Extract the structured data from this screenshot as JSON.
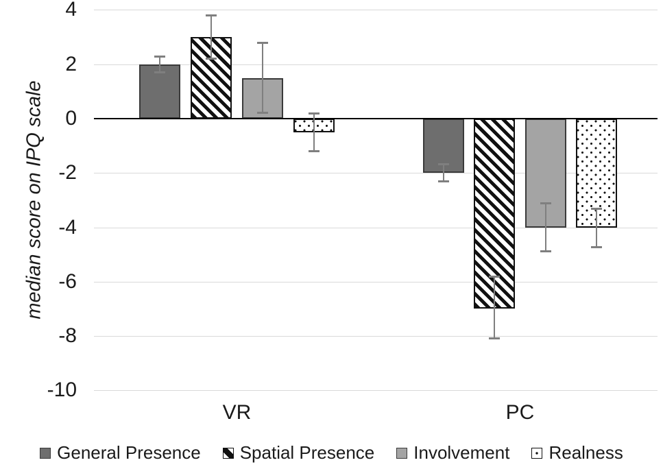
{
  "chart_data": {
    "type": "bar",
    "title": "",
    "xlabel": "",
    "ylabel": "median score on IPQ scale",
    "categories": [
      "VR",
      "PC"
    ],
    "series": [
      {
        "name": "General Presence",
        "style": "solid-dark-gray",
        "values": [
          2,
          -2
        ],
        "error_plus": [
          0.3,
          0.33
        ],
        "error_minus": [
          0.3,
          0.33
        ]
      },
      {
        "name": "Spatial Presence",
        "style": "diagonal-hatch",
        "values": [
          3,
          -7
        ],
        "error_plus": [
          0.8,
          1.2
        ],
        "error_minus": [
          0.8,
          1.1
        ]
      },
      {
        "name": "Involvement",
        "style": "solid-light-gray",
        "values": [
          1.5,
          -4
        ],
        "error_plus": [
          1.3,
          0.9
        ],
        "error_minus": [
          1.3,
          0.9
        ]
      },
      {
        "name": "Realness",
        "style": "dotted-white",
        "values": [
          -0.5,
          -4
        ],
        "error_plus": [
          0.7,
          0.7
        ],
        "error_minus": [
          0.7,
          0.75
        ]
      }
    ],
    "ylim": [
      -10,
      4
    ],
    "yticks": [
      4,
      2,
      0,
      -2,
      -4,
      -6,
      -8,
      -10
    ],
    "grid": true,
    "legend_position": "bottom",
    "error_bars": true,
    "colors": {
      "dark_gray": "#6e6e6e",
      "light_gray": "#a4a4a4",
      "bar_border": "#3a3a3a",
      "hatch_ink": "#111111",
      "gridline": "#d9d9d9",
      "zero_line": "#000000",
      "error_bar": "#7f7f7f",
      "text": "#1a1a1a",
      "background": "#ffffff"
    }
  }
}
